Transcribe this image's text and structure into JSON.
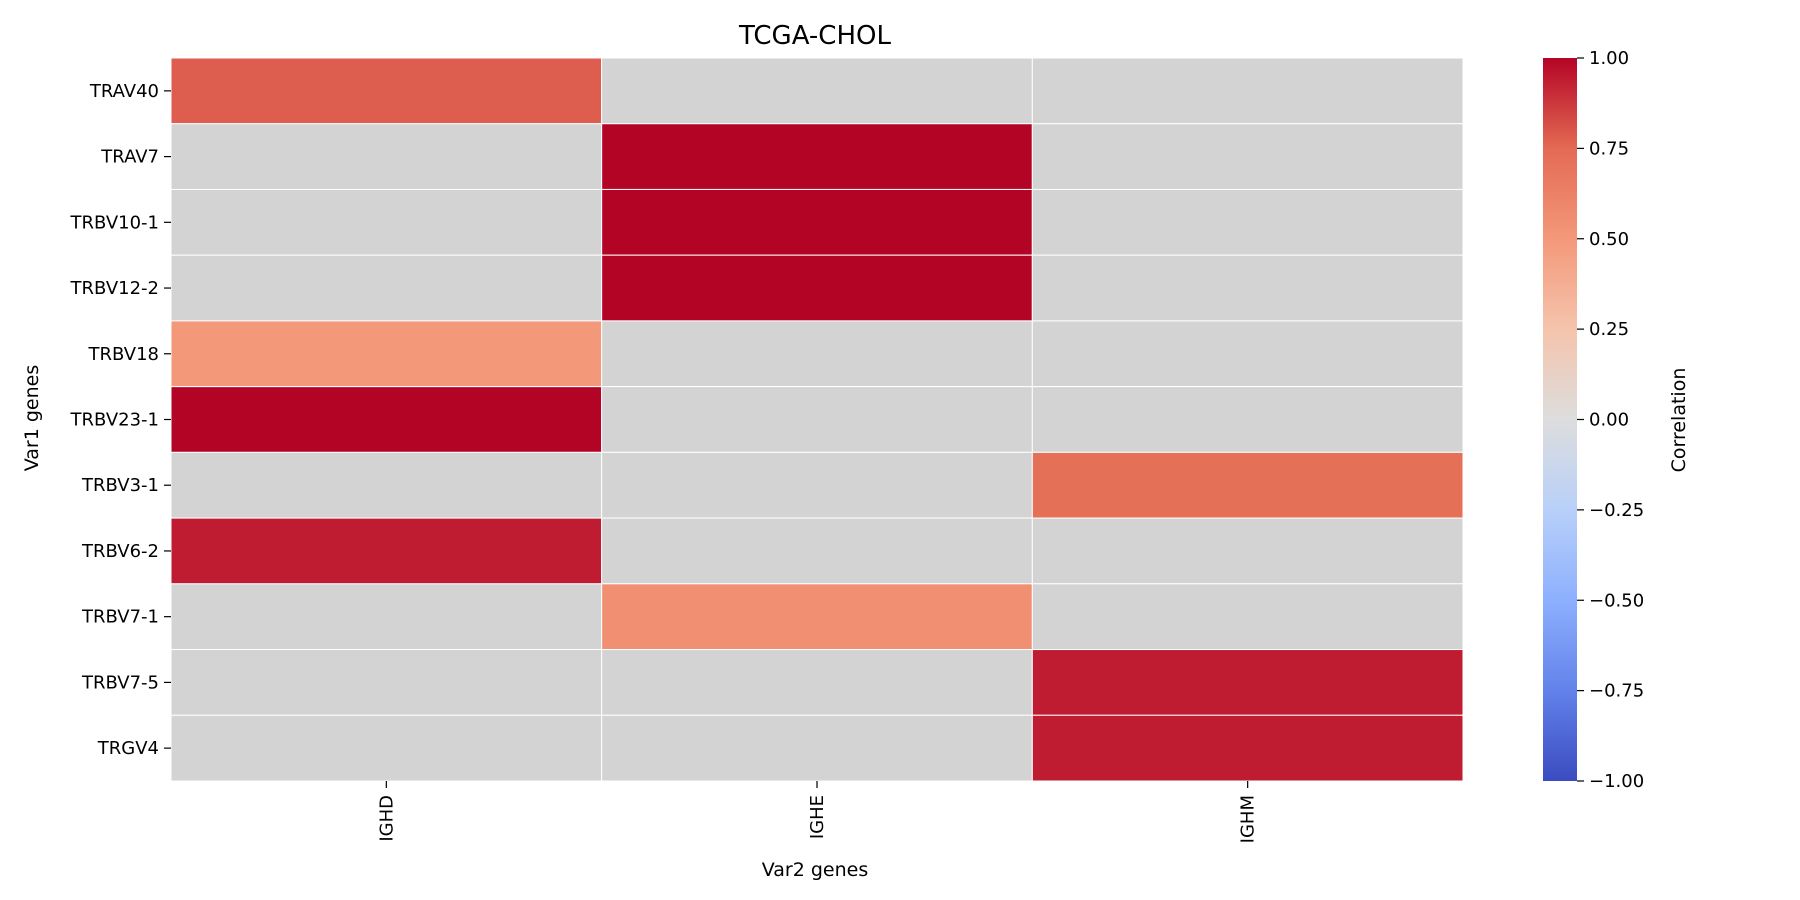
{
  "chart_data": {
    "type": "heatmap",
    "title": "TCGA-CHOL",
    "xlabel": "Var2 genes",
    "ylabel": "Var1 genes",
    "x_categories": [
      "IGHD",
      "IGHE",
      "IGHM"
    ],
    "y_categories": [
      "TRAV40",
      "TRAV7",
      "TRBV10-1",
      "TRBV12-2",
      "TRBV18",
      "TRBV23-1",
      "TRBV3-1",
      "TRBV6-2",
      "TRBV7-1",
      "TRBV7-5",
      "TRGV4"
    ],
    "values": [
      [
        0.78,
        null,
        null
      ],
      [
        null,
        1.0,
        null
      ],
      [
        null,
        1.0,
        null
      ],
      [
        null,
        1.0,
        null
      ],
      [
        0.5,
        null,
        null
      ],
      [
        1.0,
        null,
        null
      ],
      [
        null,
        null,
        0.72
      ],
      [
        0.94,
        null,
        null
      ],
      [
        null,
        0.55,
        null
      ],
      [
        null,
        null,
        0.94
      ],
      [
        null,
        null,
        0.94
      ]
    ],
    "missing_color": "#d3d3d3",
    "colormap": "coolwarm",
    "vmin": -1.0,
    "vmax": 1.0,
    "colorbar": {
      "label": "Correlation",
      "ticks": [
        "1.00",
        "0.75",
        "0.50",
        "0.25",
        "0.00",
        "−0.25",
        "−0.50",
        "−0.75",
        "−1.00"
      ]
    }
  }
}
